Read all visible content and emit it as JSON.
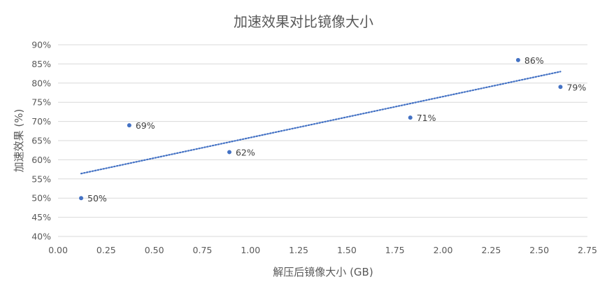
{
  "chart_data": {
    "type": "scatter",
    "title": "加速效果对比镜像大小",
    "xlabel": "解压后镜像大小 (GB)",
    "ylabel": "加速效果 (%)",
    "xlim": [
      0,
      2.75
    ],
    "ylim": [
      40,
      90
    ],
    "x_ticks": [
      "0.00",
      "0.25",
      "0.50",
      "0.75",
      "1.00",
      "1.25",
      "1.50",
      "1.75",
      "2.00",
      "2.25",
      "2.50",
      "2.75"
    ],
    "y_ticks": [
      "40%",
      "45%",
      "50%",
      "55%",
      "60%",
      "65%",
      "70%",
      "75%",
      "80%",
      "85%",
      "90%"
    ],
    "grid": "horizontal",
    "legend": "none",
    "points": [
      {
        "x": 0.12,
        "y": 50,
        "label": "50%"
      },
      {
        "x": 0.37,
        "y": 69,
        "label": "69%"
      },
      {
        "x": 0.89,
        "y": 62,
        "label": "62%"
      },
      {
        "x": 1.83,
        "y": 71,
        "label": "71%"
      },
      {
        "x": 2.39,
        "y": 86,
        "label": "86%"
      },
      {
        "x": 2.61,
        "y": 79,
        "label": "79%"
      }
    ],
    "trendline": {
      "type": "linear",
      "x_start": 0.12,
      "x_end": 2.61,
      "y_start": 56.4,
      "y_end": 83.0
    },
    "colors": {
      "marker": "#4472c4",
      "trendline": "#4472c4",
      "grid": "#d9d9d9",
      "text": "#595959"
    }
  }
}
